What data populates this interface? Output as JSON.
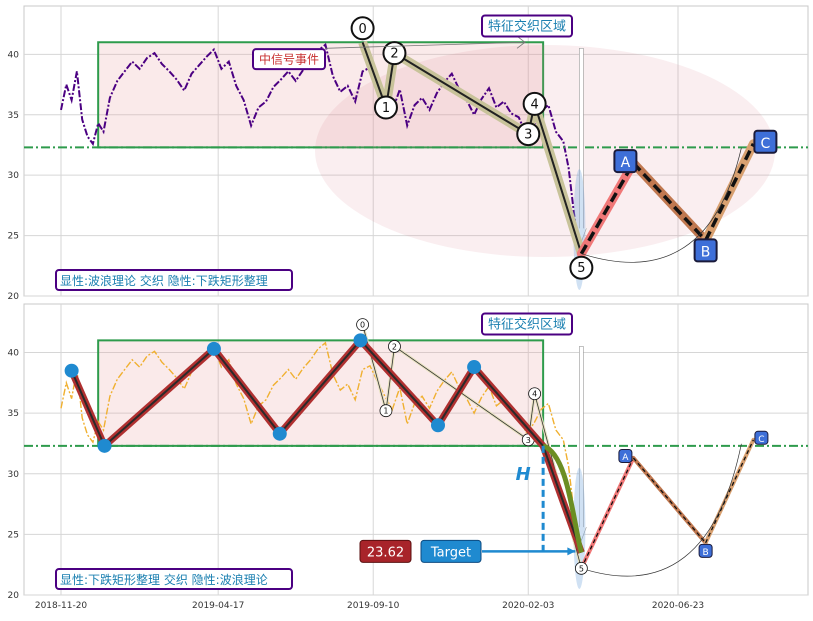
{
  "chart_data": [
    {
      "type": "line",
      "panel": "top",
      "ylim": [
        20,
        44
      ],
      "yticks": [
        20,
        25,
        30,
        35,
        40
      ],
      "grid": true,
      "price_color": "#4b0082",
      "price_style": "dash-dot",
      "price_series": [
        [
          "2018-11-20",
          35.4
        ],
        [
          "2018-11-25",
          37.5
        ],
        [
          "2018-11-30",
          36.2
        ],
        [
          "2018-12-05",
          38.6
        ],
        [
          "2018-12-10",
          34.6
        ],
        [
          "2018-12-15",
          33.2
        ],
        [
          "2018-12-20",
          32.6
        ],
        [
          "2018-12-25",
          34.3
        ],
        [
          "2018-12-30",
          33.6
        ],
        [
          "2019-01-05",
          36.4
        ],
        [
          "2019-01-12",
          37.8
        ],
        [
          "2019-01-19",
          38.6
        ],
        [
          "2019-01-26",
          39.4
        ],
        [
          "2019-02-02",
          38.8
        ],
        [
          "2019-02-09",
          39.7
        ],
        [
          "2019-02-16",
          40.1
        ],
        [
          "2019-02-23",
          39.2
        ],
        [
          "2019-03-02",
          38.6
        ],
        [
          "2019-03-09",
          37.9
        ],
        [
          "2019-03-16",
          37.0
        ],
        [
          "2019-03-23",
          38.4
        ],
        [
          "2019-03-30",
          39.1
        ],
        [
          "2019-04-06",
          39.8
        ],
        [
          "2019-04-13",
          40.4
        ],
        [
          "2019-04-20",
          38.8
        ],
        [
          "2019-04-27",
          39.4
        ],
        [
          "2019-05-04",
          37.4
        ],
        [
          "2019-05-11",
          36.2
        ],
        [
          "2019-05-18",
          34.1
        ],
        [
          "2019-05-25",
          35.6
        ],
        [
          "2019-06-01",
          36.1
        ],
        [
          "2019-06-08",
          37.3
        ],
        [
          "2019-06-15",
          37.9
        ],
        [
          "2019-06-22",
          38.6
        ],
        [
          "2019-06-29",
          37.8
        ],
        [
          "2019-07-06",
          38.7
        ],
        [
          "2019-07-13",
          39.4
        ],
        [
          "2019-07-20",
          40.3
        ],
        [
          "2019-07-27",
          40.8
        ],
        [
          "2019-08-03",
          38.2
        ],
        [
          "2019-08-10",
          36.9
        ],
        [
          "2019-08-17",
          37.4
        ],
        [
          "2019-08-24",
          36.1
        ],
        [
          "2019-08-31",
          38.6
        ],
        [
          "2019-09-07",
          38.9
        ],
        [
          "2019-09-14",
          37.6
        ],
        [
          "2019-09-21",
          36.4
        ],
        [
          "2019-09-28",
          35.3
        ],
        [
          "2019-10-05",
          37.1
        ],
        [
          "2019-10-12",
          34.1
        ],
        [
          "2019-10-19",
          35.8
        ],
        [
          "2019-10-26",
          36.4
        ],
        [
          "2019-11-02",
          35.4
        ],
        [
          "2019-11-09",
          36.8
        ],
        [
          "2019-11-16",
          37.7
        ],
        [
          "2019-11-23",
          38.4
        ],
        [
          "2019-11-30",
          37.1
        ],
        [
          "2019-12-07",
          36.2
        ],
        [
          "2019-12-14",
          35.0
        ],
        [
          "2019-12-21",
          36.3
        ],
        [
          "2019-12-28",
          37.2
        ],
        [
          "2020-01-04",
          35.6
        ],
        [
          "2020-01-11",
          36.1
        ],
        [
          "2020-01-18",
          35.1
        ],
        [
          "2020-01-25",
          34.8
        ],
        [
          "2020-02-01",
          33.4
        ],
        [
          "2020-02-08",
          34.1
        ],
        [
          "2020-02-15",
          35.3
        ],
        [
          "2020-02-22",
          35.8
        ],
        [
          "2020-02-29",
          33.6
        ],
        [
          "2020-03-07",
          32.8
        ],
        [
          "2020-03-12",
          30.6
        ],
        [
          "2020-03-17",
          26.9
        ],
        [
          "2020-03-22",
          23.7
        ]
      ],
      "wave_points": [
        {
          "label": "0",
          "date": "2019-08-31",
          "value": 41.0
        },
        {
          "label": "1",
          "date": "2019-09-22",
          "value": 35.6
        },
        {
          "label": "2",
          "date": "2019-09-30",
          "value": 40.1
        },
        {
          "label": "3",
          "date": "2020-02-03",
          "value": 33.4
        },
        {
          "label": "4",
          "date": "2020-02-09",
          "value": 35.9
        },
        {
          "label": "5",
          "date": "2020-03-24",
          "value": 23.5
        }
      ],
      "abc_points": [
        {
          "label": "A",
          "date": "2020-05-12",
          "value": 31.0
        },
        {
          "label": "B",
          "date": "2020-07-19",
          "value": 24.6
        },
        {
          "label": "C",
          "date": "2020-09-02",
          "value": 32.6
        }
      ],
      "rectangle": {
        "x_start": "2018-12-25",
        "x_end": "2020-02-17",
        "y_low": 32.3,
        "y_high": 41.0
      },
      "support_line": 32.3,
      "annotation_zone": "特征交织区域",
      "event_label": "中信号事件",
      "caption": "显性:波浪理论 交织 隐性:下跌矩形整理"
    },
    {
      "type": "line",
      "panel": "bottom",
      "ylim": [
        20,
        44
      ],
      "yticks": [
        20,
        25,
        30,
        35,
        40
      ],
      "grid": true,
      "xticks": [
        "2018-11-20",
        "2019-04-17",
        "2019-09-10",
        "2020-02-03",
        "2020-06-23"
      ],
      "price_color": "#f0b030",
      "price_style": "dash-dot",
      "zigzag_points": [
        {
          "date": "2018-11-30",
          "value": 38.5
        },
        {
          "date": "2018-12-31",
          "value": 32.3
        },
        {
          "date": "2019-04-13",
          "value": 40.3
        },
        {
          "date": "2019-06-14",
          "value": 33.3
        },
        {
          "date": "2019-08-29",
          "value": 41.0
        },
        {
          "date": "2019-11-10",
          "value": 34.0
        },
        {
          "date": "2019-12-14",
          "value": 38.8
        },
        {
          "date": "2020-02-17",
          "value": 32.3
        },
        {
          "date": "2020-03-24",
          "value": 23.5
        }
      ],
      "wave_points": [
        {
          "label": "0",
          "date": "2019-08-31",
          "value": 42.3
        },
        {
          "label": "1",
          "date": "2019-09-22",
          "value": 35.2
        },
        {
          "label": "2",
          "date": "2019-09-30",
          "value": 40.5
        },
        {
          "label": "3",
          "date": "2020-02-03",
          "value": 32.8
        },
        {
          "label": "4",
          "date": "2020-02-09",
          "value": 36.6
        },
        {
          "label": "5",
          "date": "2020-03-24",
          "value": 22.2
        }
      ],
      "abc_points": [
        {
          "label": "A",
          "date": "2020-05-12",
          "value": 31.3
        },
        {
          "label": "B",
          "date": "2020-07-19",
          "value": 24.3
        },
        {
          "label": "C",
          "date": "2020-09-02",
          "value": 32.8
        }
      ],
      "rectangle": {
        "x_start": "2018-12-25",
        "x_end": "2020-02-17",
        "y_low": 32.3,
        "y_high": 41.0
      },
      "support_line": 32.3,
      "height_label": "H",
      "target_label": "Target",
      "target_value": "23.62",
      "annotation_zone": "特征交织区域",
      "caption": "显性:下跌矩形整理 交织 隐性:波浪理论"
    }
  ]
}
